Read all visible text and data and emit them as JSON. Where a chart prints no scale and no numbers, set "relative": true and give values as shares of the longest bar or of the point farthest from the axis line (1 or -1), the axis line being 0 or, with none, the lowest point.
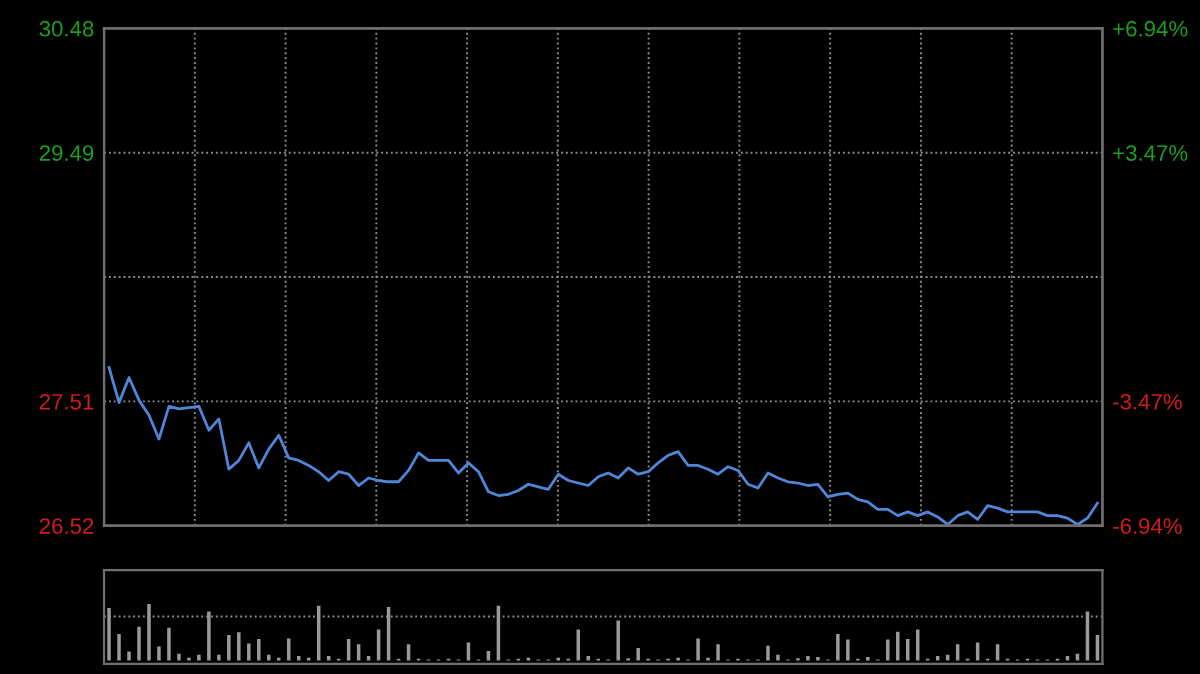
{
  "chart_data": [
    {
      "type": "line",
      "categories": [
        null,
        null,
        null,
        null,
        null,
        null,
        null,
        null,
        null,
        null,
        null,
        null,
        null,
        null,
        null,
        null,
        null,
        null,
        null,
        null,
        null,
        null,
        null,
        null,
        null,
        null,
        null,
        null,
        null,
        null,
        null,
        null,
        null,
        null,
        null,
        null,
        null,
        null,
        null,
        null,
        null,
        null,
        null,
        null,
        null,
        null,
        null,
        null,
        null,
        null,
        null,
        null,
        null,
        null,
        null,
        null,
        null,
        null,
        null,
        null,
        null,
        null,
        null,
        null,
        null,
        null,
        null,
        null,
        null,
        null,
        null,
        null,
        null,
        null,
        null,
        null,
        null,
        null,
        null,
        null,
        null,
        null,
        null,
        null,
        null,
        null,
        null,
        null,
        null,
        null,
        null,
        null,
        null,
        null,
        null,
        null,
        null,
        null,
        null,
        null
      ],
      "series": [
        {
          "color": "#4f86d9",
          "values": [
            27.78,
            27.5,
            27.7,
            27.52,
            27.4,
            27.21,
            27.47,
            27.45,
            27.46,
            27.47,
            27.28,
            27.37,
            26.97,
            27.04,
            27.18,
            26.98,
            27.13,
            27.24,
            27.06,
            27.04,
            27.0,
            26.95,
            26.88,
            26.95,
            26.93,
            26.84,
            26.9,
            26.88,
            26.87,
            26.87,
            26.96,
            27.1,
            27.04,
            27.04,
            27.04,
            26.94,
            27.02,
            26.95,
            26.79,
            26.76,
            26.77,
            26.8,
            26.85,
            26.83,
            26.81,
            26.93,
            26.88,
            26.86,
            26.84,
            26.91,
            26.94,
            26.9,
            26.98,
            26.93,
            26.95,
            27.02,
            27.08,
            27.11,
            27.0,
            27.0,
            26.97,
            26.93,
            26.99,
            26.96,
            26.85,
            26.82,
            26.94,
            26.9,
            26.87,
            26.86,
            26.84,
            26.85,
            26.75,
            26.77,
            26.78,
            26.73,
            26.71,
            26.65,
            26.65,
            26.6,
            26.63,
            26.6,
            26.63,
            26.59,
            26.53,
            26.6,
            26.63,
            26.57,
            26.68,
            26.66,
            26.63,
            26.63,
            26.63,
            26.63,
            26.6,
            26.6,
            26.58,
            26.53,
            26.58,
            26.7
          ]
        }
      ],
      "ylim": [
        26.52,
        30.48
      ],
      "yticks": [
        26.52,
        27.51,
        {
          "value": 28.5,
          "label": null
        },
        29.49,
        30.48
      ],
      "y2lim": [
        -6.94,
        6.94
      ],
      "y2ticks": [
        {
          "value": -6.94,
          "label": "-6.94%"
        },
        {
          "value": -3.47,
          "label": "-3.47%"
        },
        {
          "value": 0,
          "label": null
        },
        {
          "value": 3.47,
          "label": "+3.47%"
        },
        {
          "value": 6.94,
          "label": "+6.94%"
        }
      ],
      "grid": true,
      "legend": false,
      "marker": "none",
      "line_style": "solid"
    },
    {
      "type": "bar",
      "relative": true,
      "color": "#9a9a9a",
      "categories": [
        null,
        null,
        null,
        null,
        null,
        null,
        null,
        null,
        null,
        null,
        null,
        null,
        null,
        null,
        null,
        null,
        null,
        null,
        null,
        null,
        null,
        null,
        null,
        null,
        null,
        null,
        null,
        null,
        null,
        null,
        null,
        null,
        null,
        null,
        null,
        null,
        null,
        null,
        null,
        null,
        null,
        null,
        null,
        null,
        null,
        null,
        null,
        null,
        null,
        null,
        null,
        null,
        null,
        null,
        null,
        null,
        null,
        null,
        null,
        null,
        null,
        null,
        null,
        null,
        null,
        null,
        null,
        null,
        null,
        null,
        null,
        null,
        null,
        null,
        null,
        null,
        null,
        null,
        null,
        null,
        null,
        null,
        null,
        null,
        null,
        null,
        null,
        null,
        null,
        null,
        null,
        null,
        null,
        null,
        null,
        null,
        null,
        null,
        null,
        null
      ],
      "values": [
        0.93,
        0.47,
        0.16,
        0.6,
        1.0,
        0.25,
        0.58,
        0.12,
        0.05,
        0.1,
        0.87,
        0.1,
        0.45,
        0.5,
        0.3,
        0.38,
        0.1,
        0.05,
        0.39,
        0.08,
        0.05,
        0.97,
        0.08,
        0.03,
        0.38,
        0.29,
        0.08,
        0.55,
        0.95,
        0.03,
        0.29,
        0.03,
        0.02,
        0.02,
        0.03,
        0.02,
        0.32,
        0.02,
        0.17,
        0.97,
        0.02,
        0.03,
        0.05,
        0.02,
        0.02,
        0.05,
        0.03,
        0.55,
        0.08,
        0.03,
        0.02,
        0.71,
        0.04,
        0.22,
        0.03,
        0.02,
        0.03,
        0.05,
        0.02,
        0.39,
        0.05,
        0.29,
        0.02,
        0.03,
        0.02,
        0.02,
        0.26,
        0.1,
        0.02,
        0.04,
        0.08,
        0.06,
        0.02,
        0.47,
        0.37,
        0.03,
        0.06,
        0.02,
        0.37,
        0.51,
        0.38,
        0.55,
        0.03,
        0.08,
        0.1,
        0.29,
        0.03,
        0.32,
        0.03,
        0.29,
        0.03,
        0.02,
        0.03,
        0.02,
        0.02,
        0.03,
        0.08,
        0.12,
        0.87,
        0.45
      ],
      "ref_lines": [
        {
          "axis": "y",
          "value": 0.78,
          "color": "#8a8a8a",
          "line_style": "dotted"
        }
      ],
      "legend": false
    }
  ]
}
